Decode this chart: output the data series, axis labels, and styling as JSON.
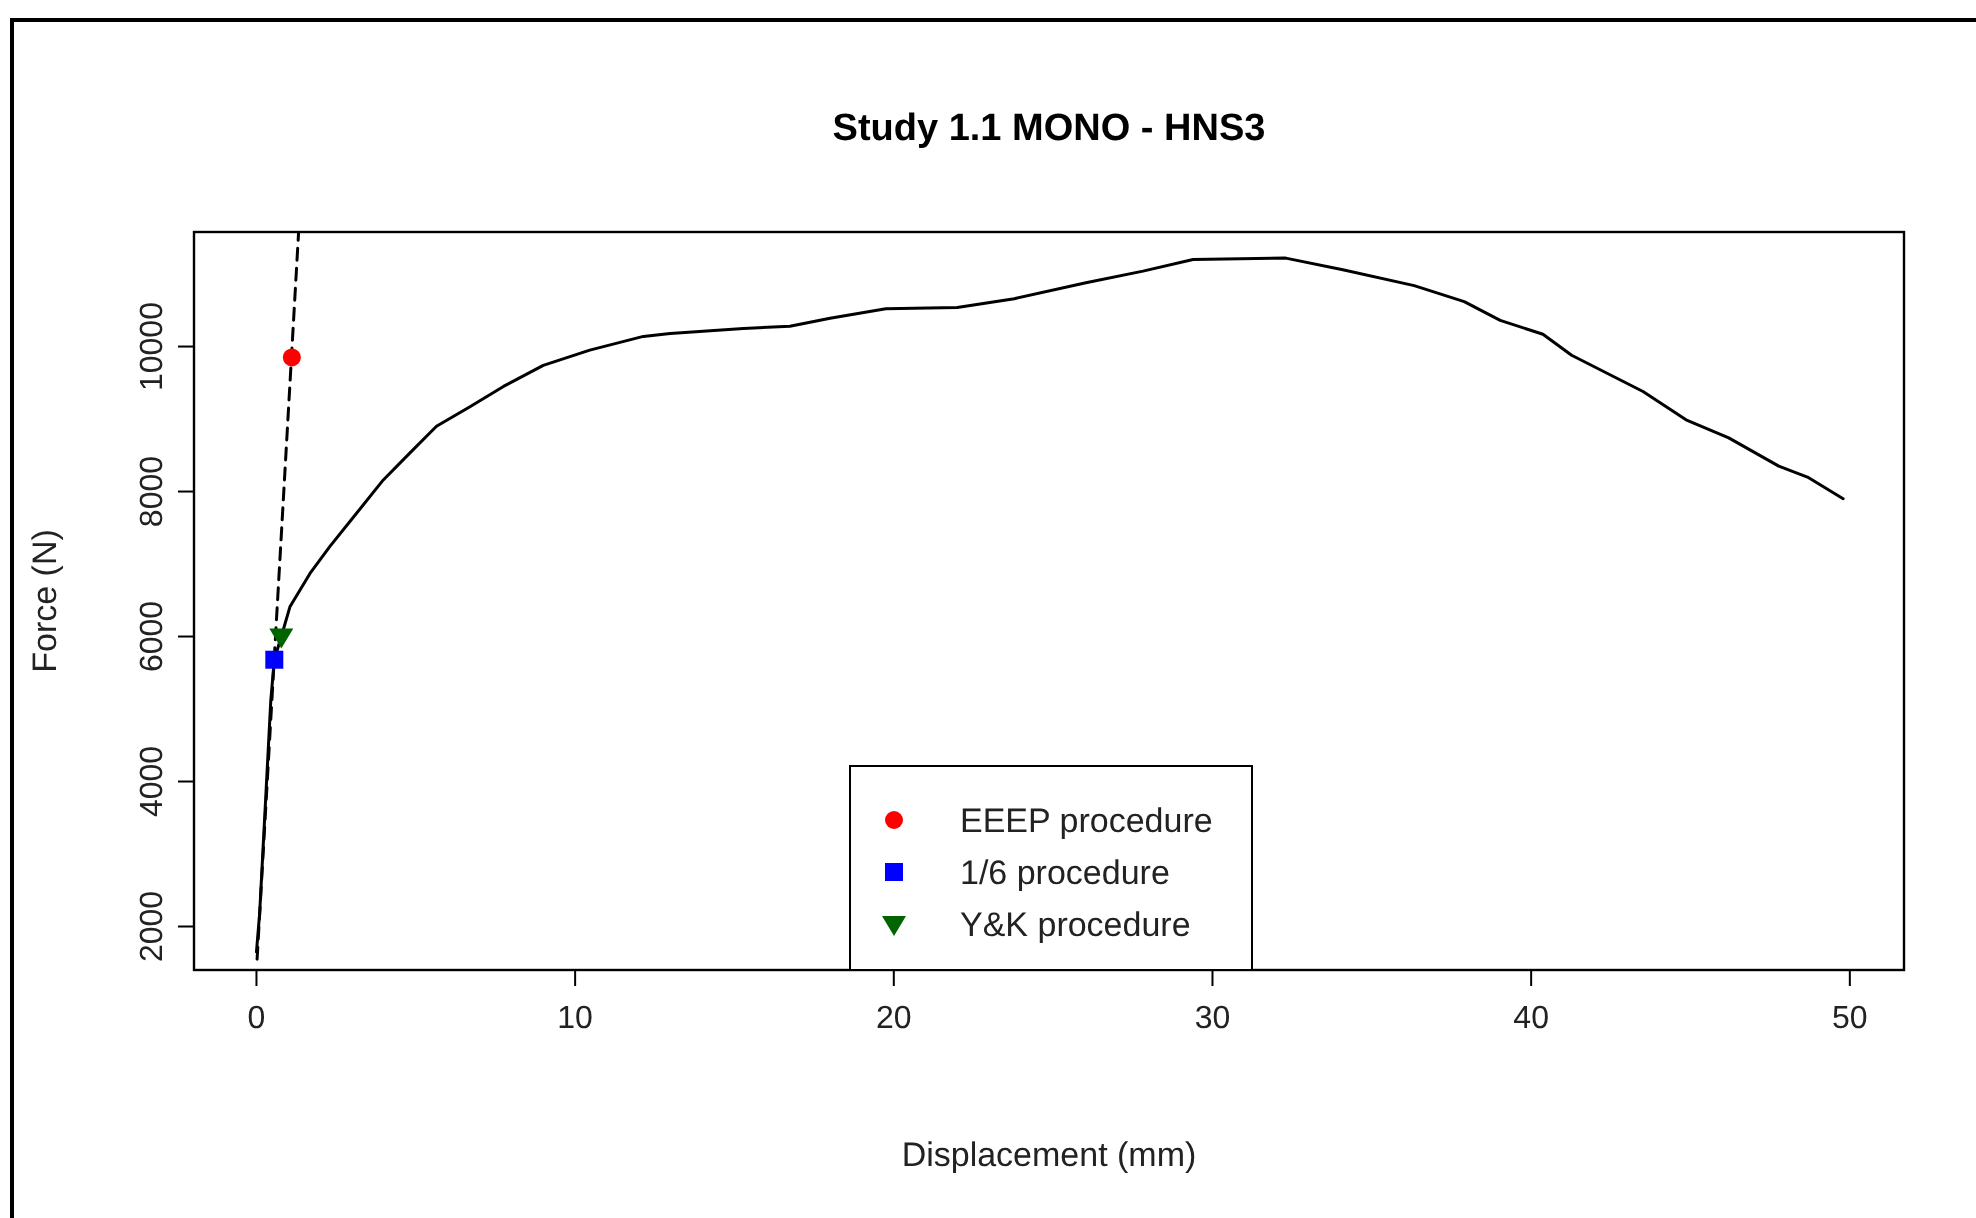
{
  "chart_data": {
    "type": "line",
    "title": "Study 1.1 MONO - HNS3",
    "xlabel": "Displacement (mm)",
    "ylabel": "Force (N)",
    "xlim": [
      -1.96,
      51.7
    ],
    "xticks": [
      0,
      10,
      20,
      30,
      40,
      50
    ],
    "ylim": [
      1400,
      11580
    ],
    "yticks": [
      2000,
      4000,
      6000,
      8000,
      10000
    ],
    "grid": false,
    "legend": "bottom",
    "series": [
      {
        "color": "#000000",
        "line_style": "solid",
        "marker": "none",
        "x": [
          0,
          0.1,
          0.31,
          0.45,
          0.56,
          0.78,
          1.05,
          1.68,
          2.3,
          3.14,
          3.98,
          4.81,
          5.65,
          6.7,
          7.75,
          9.0,
          10.46,
          12.14,
          12.98,
          15.28,
          16.74,
          18.0,
          19.75,
          21.99,
          23.78,
          26.03,
          27.82,
          29.39,
          32.3,
          34.09,
          36.33,
          37.9,
          39.03,
          40.37,
          41.27,
          43.51,
          44.86,
          46.2,
          47.77,
          48.67,
          49.79
        ],
        "values": [
          1650,
          2180,
          3940,
          5120,
          5680,
          6000,
          6410,
          6870,
          7240,
          7700,
          8160,
          8530,
          8900,
          9170,
          9450,
          9740,
          9950,
          10140,
          10180,
          10250,
          10280,
          10390,
          10520,
          10540,
          10660,
          10880,
          11040,
          11200,
          11220,
          11060,
          10840,
          10620,
          10360,
          10170,
          9880,
          9380,
          8990,
          8740,
          8350,
          8200,
          7900
        ]
      },
      {
        "type": "line",
        "color": "#000000",
        "line_style": "dashed",
        "marker": "none",
        "x": [
          0.02,
          1.32
        ],
        "values": [
          1550,
          11560
        ]
      },
      {
        "type": "scatter",
        "name": "EEEP procedure",
        "color": "#ff0000",
        "marker": "circle",
        "x": [
          1.11
        ],
        "values": [
          9850
        ]
      },
      {
        "type": "scatter",
        "name": "1/6 procedure",
        "color": "#0000ff",
        "marker": "square",
        "x": [
          0.56
        ],
        "values": [
          5680
        ]
      },
      {
        "type": "scatter",
        "name": "Y&K procedure",
        "color": "#006400",
        "marker": "triangle",
        "x": [
          0.78
        ],
        "values": [
          6000
        ]
      }
    ]
  }
}
